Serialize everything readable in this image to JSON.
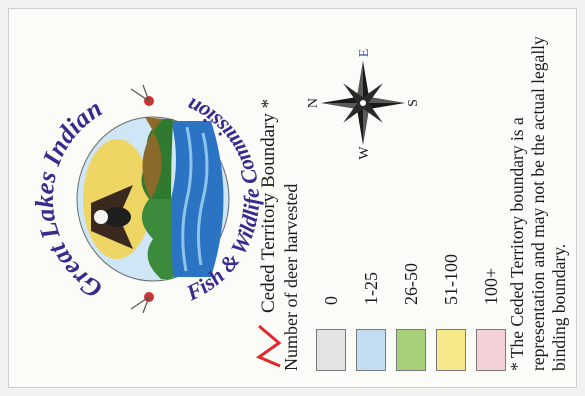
{
  "logo": {
    "text_top": "Great Lakes Indian",
    "text_bottom": "Fish & Wildlife Commission"
  },
  "legend": {
    "boundary_label": "Ceded Territory Boundary *",
    "boundary_color": "#e0282a",
    "title": "Number of deer harvested",
    "items": [
      {
        "label": "0",
        "color": "#e3e3e3"
      },
      {
        "label": "1-25",
        "color": "#c2dcf2"
      },
      {
        "label": "26-50",
        "color": "#a8d07a"
      },
      {
        "label": "51-100",
        "color": "#f6e98a"
      },
      {
        "label": "100+",
        "color": "#f4d1d7"
      }
    ]
  },
  "compass": {
    "n": "N",
    "e": "E",
    "s": "S",
    "w": "W"
  },
  "footnote": "* The Ceded Territory boundary is a representation and may not be the actual legally binding boundary."
}
